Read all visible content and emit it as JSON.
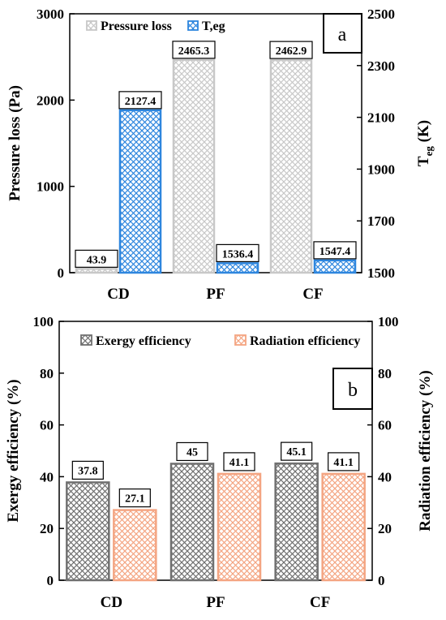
{
  "chart_data": [
    {
      "type": "bar",
      "panel_label": "a",
      "categories": [
        "CD",
        "PF",
        "CF"
      ],
      "ylabel_left": "Pressure loss (Pa)",
      "ylabel_right_main": "T",
      "ylabel_right_sub": "eg",
      "ylabel_right_unit": " (K)",
      "ylim_left": [
        0,
        3000
      ],
      "yticks_left": [
        "0",
        "1000",
        "2000",
        "3000"
      ],
      "ylim_right": [
        1500,
        2500
      ],
      "yticks_right": [
        "1500",
        "1700",
        "1900",
        "2100",
        "2300",
        "2500"
      ],
      "legend_position": "top-left",
      "series": [
        {
          "name": "Pressure loss",
          "axis": "left",
          "values": [
            43.9,
            2465.3,
            2462.9
          ],
          "labels": [
            "43.9",
            "2465.3",
            "2462.9"
          ],
          "color": "#c8c8c8"
        },
        {
          "name": "T,eg",
          "axis": "right",
          "values": [
            2127.4,
            1536.4,
            1547.4
          ],
          "labels": [
            "2127.4",
            "1536.4",
            "1547.4"
          ],
          "color": "#2e86de"
        }
      ]
    },
    {
      "type": "bar",
      "panel_label": "b",
      "categories": [
        "CD",
        "PF",
        "CF"
      ],
      "ylabel_left": "Exergy efficiency (%)",
      "ylabel_right": "Radiation efficiency (%)",
      "ylim": [
        0,
        100
      ],
      "yticks": [
        "0",
        "20",
        "40",
        "60",
        "80",
        "100"
      ],
      "legend_position": "top",
      "series": [
        {
          "name": "Exergy efficiency",
          "values": [
            37.8,
            45,
            45.1
          ],
          "labels": [
            "37.8",
            "45",
            "45.1"
          ],
          "color": "#707070"
        },
        {
          "name": "Radiation efficiency",
          "values": [
            27.1,
            41.1,
            41.1
          ],
          "labels": [
            "27.1",
            "41.1",
            "41.1"
          ],
          "color": "#f4a582"
        }
      ]
    }
  ]
}
